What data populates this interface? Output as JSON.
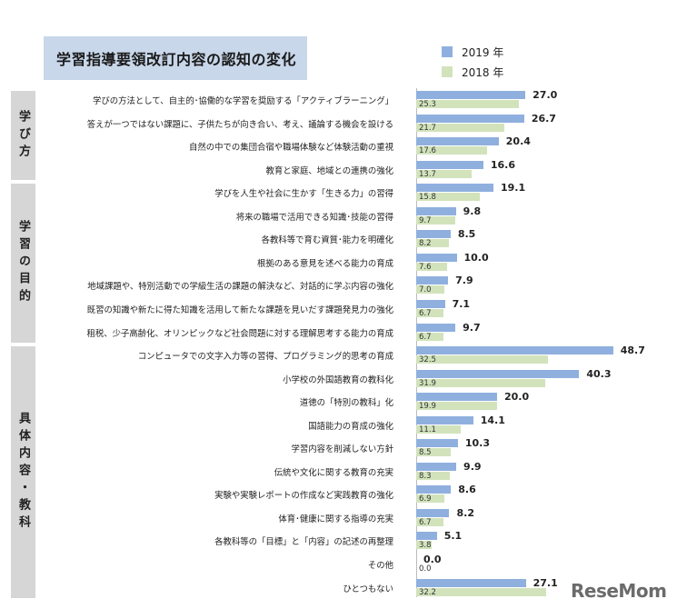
{
  "title": "学習指導要領改訂内容の認知の変化",
  "logo": "ReseMom",
  "colors": {
    "y2019": "#8fb0de",
    "y2018": "#d2e3bc",
    "band": "#d6d6d6",
    "title_bg": "#c8d7ea"
  },
  "groups": [
    {
      "label": "学び方",
      "start": 0,
      "end": 3
    },
    {
      "label": "学習の目的",
      "start": 4,
      "end": 10
    },
    {
      "label": "具体内容・教科",
      "start": 11,
      "end": 21
    }
  ],
  "chart_data": {
    "type": "bar",
    "orientation": "horizontal",
    "title": "学習指導要領改訂内容の認知の変化",
    "legend_position": "top-right",
    "categories": [
      "学びの方法として、自主的･協働的な学習を奨励する「アクティブラーニング」",
      "答えが一つではない課題に、子供たちが向き合い、考え、議論する機会を設ける",
      "自然の中での集団合宿や職場体験など体験活動の重視",
      "教育と家庭、地域との連携の強化",
      "学びを人生や社会に生かす「生きる力」の習得",
      "将来の職場で活用できる知識･技能の習得",
      "各教科等で育む資質･能力を明確化",
      "根拠のある意見を述べる能力の育成",
      "地域課題や、特別活動での学級生活の課題の解決など、対話的に学ぶ内容の強化",
      "既習の知識や新たに得た知識を活用して新たな課題を見いだす課題発見力の強化",
      "租税、少子高齢化、オリンピックなど社会問題に対する理解思考する能力の育成",
      "コンピュータでの文字入力等の習得、プログラミング的思考の育成",
      "小学校の外国語教育の教科化",
      "道徳の「特別の教科」化",
      "国語能力の育成の強化",
      "学習内容を削減しない方針",
      "伝統や文化に関する教育の充実",
      "実験や実験レポートの作成など実践教育の強化",
      "体育･健康に関する指導の充実",
      "各教科等の「目標」と「内容」の記述の再整理",
      "その他",
      "ひとつもない"
    ],
    "series": [
      {
        "name": "2019 年",
        "values": [
          27.0,
          26.7,
          20.4,
          16.6,
          19.1,
          9.8,
          8.5,
          10.0,
          7.9,
          7.1,
          9.7,
          48.7,
          40.3,
          20.0,
          14.1,
          10.3,
          9.9,
          8.6,
          8.2,
          5.1,
          0.0,
          27.1
        ]
      },
      {
        "name": "2018 年",
        "values": [
          25.3,
          21.7,
          17.6,
          13.7,
          15.8,
          9.7,
          8.2,
          7.6,
          7.0,
          6.7,
          6.7,
          32.5,
          31.9,
          19.9,
          11.1,
          8.5,
          8.3,
          6.9,
          6.7,
          3.8,
          0.0,
          32.2
        ]
      }
    ],
    "xlim": [
      0,
      50
    ]
  }
}
